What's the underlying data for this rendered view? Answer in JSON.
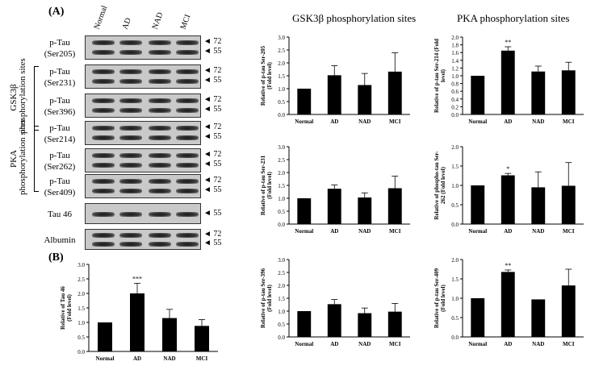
{
  "figure": {
    "panel_a": "(A)",
    "panel_b": "(B)",
    "lanes": [
      "Normal",
      "AD",
      "NAD",
      "MCI"
    ],
    "gsk_header": "GSK3β phosphorylation sites",
    "pka_header": "PKA phosphorylation sites",
    "group_gsk": "GSK3β\nphosphorylation sites",
    "group_pka": "PKA\nphosphorylation sites",
    "blots": [
      {
        "l1": "p-Tau",
        "l2": "(Ser205)",
        "mw": [
          "◄ 72",
          "◄ 55"
        ]
      },
      {
        "l1": "p-Tau",
        "l2": "(Ser231)",
        "mw": [
          "◄ 72",
          "◄ 55"
        ]
      },
      {
        "l1": "p-Tau",
        "l2": "(Ser396)",
        "mw": [
          "◄ 72",
          "◄ 55"
        ]
      },
      {
        "l1": "p-Tau",
        "l2": "(Ser214)",
        "mw": [
          "◄ 72",
          "◄ 55"
        ]
      },
      {
        "l1": "p-Tau",
        "l2": "(Ser262)",
        "mw": [
          "◄ 72",
          "◄ 55"
        ]
      },
      {
        "l1": "p-Tau",
        "l2": "(Ser409)",
        "mw": [
          "◄ 72",
          "◄ 55"
        ]
      },
      {
        "l1": "Tau 46",
        "l2": "",
        "mw": [
          "◄ 55"
        ]
      },
      {
        "l1": "Albumin",
        "l2": "",
        "mw": [
          "◄ 72",
          "◄ 55"
        ]
      }
    ]
  },
  "chart_data": [
    {
      "id": "tau46",
      "type": "bar",
      "categories": [
        "Normal",
        "AD",
        "NAD",
        "MCI"
      ],
      "values": [
        1.0,
        2.0,
        1.15,
        0.88
      ],
      "errors": [
        0,
        0.35,
        0.3,
        0.22
      ],
      "annotations": [
        "",
        "***",
        "",
        ""
      ],
      "ylabel": "Relative of Tau 46\n(Fold level)",
      "ylim": [
        0,
        3.0
      ],
      "yticks": [
        "0.0",
        "0.5",
        "1.0",
        "1.5",
        "2.0",
        "2.5",
        "3.0"
      ]
    },
    {
      "id": "ser205",
      "type": "bar",
      "categories": [
        "Normal",
        "AD",
        "NAD",
        "MCI"
      ],
      "values": [
        1.0,
        1.52,
        1.14,
        1.66
      ],
      "errors": [
        0,
        0.37,
        0.45,
        0.73
      ],
      "annotations": [
        "",
        "",
        "",
        ""
      ],
      "ylabel": "Relative of p-tau Ser-205\n(Fold level)",
      "ylim": [
        0,
        3.0
      ],
      "yticks": [
        "0.0",
        "0.5",
        "1.0",
        "1.5",
        "2.0",
        "2.5",
        "3.0"
      ]
    },
    {
      "id": "ser231",
      "type": "bar",
      "categories": [
        "Normal",
        "AD",
        "NAD",
        "MCI"
      ],
      "values": [
        1.0,
        1.37,
        1.03,
        1.39
      ],
      "errors": [
        0,
        0.15,
        0.18,
        0.47
      ],
      "annotations": [
        "",
        "",
        "",
        ""
      ],
      "ylabel": "Relative of p-tau Ser-231\n(Fold level)",
      "ylim": [
        0,
        3.0
      ],
      "yticks": [
        "0.0",
        "0.5",
        "1.0",
        "1.5",
        "2.0",
        "2.5",
        "3.0"
      ]
    },
    {
      "id": "ser396",
      "type": "bar",
      "categories": [
        "Normal",
        "AD",
        "NAD",
        "MCI"
      ],
      "values": [
        1.0,
        1.27,
        0.92,
        0.98
      ],
      "errors": [
        0,
        0.18,
        0.2,
        0.32
      ],
      "annotations": [
        "",
        "",
        "",
        ""
      ],
      "ylabel": "Relative of p-tau Ser-396\n(Fold level)",
      "ylim": [
        0,
        3.0
      ],
      "yticks": [
        "0.0",
        "0.5",
        "1.0",
        "1.5",
        "2.0",
        "2.5",
        "3.0"
      ]
    },
    {
      "id": "ser214",
      "type": "bar",
      "categories": [
        "Normal",
        "AD",
        "NAD",
        "MCI"
      ],
      "values": [
        1.0,
        1.65,
        1.11,
        1.14
      ],
      "errors": [
        0,
        0.1,
        0.14,
        0.21
      ],
      "annotations": [
        "",
        "**",
        "",
        ""
      ],
      "ylabel": "Relative of p-tau Ser-214 (Fold\nlevel)",
      "ylim": [
        0,
        2.0
      ],
      "yticks": [
        "0.0",
        "0.2",
        "0.4",
        "0.6",
        "0.8",
        "1.0",
        "1.2",
        "1.4",
        "1.6",
        "1.8",
        "2.0"
      ]
    },
    {
      "id": "ser262",
      "type": "bar",
      "categories": [
        "Normal",
        "AD",
        "NAD",
        "MCI"
      ],
      "values": [
        1.0,
        1.26,
        0.95,
        0.99
      ],
      "errors": [
        0,
        0.05,
        0.4,
        0.6
      ],
      "annotations": [
        "",
        "*",
        "",
        ""
      ],
      "ylabel": "Relative of  phospho-tau Ser-\n262 (Fold level)",
      "ylim": [
        0,
        2.0
      ],
      "yticks": [
        "0.0",
        "0.5",
        "1.0",
        "1.5",
        "2.0"
      ]
    },
    {
      "id": "ser409",
      "type": "bar",
      "categories": [
        "Normal",
        "AD",
        "NAD",
        "MCI"
      ],
      "values": [
        1.0,
        1.68,
        0.97,
        1.33
      ],
      "errors": [
        0,
        0.05,
        0,
        0.42
      ],
      "annotations": [
        "",
        "**",
        "",
        ""
      ],
      "ylabel": "Relative of p-tau Ser-409\n(Fold level)",
      "ylim": [
        0,
        2.0
      ],
      "yticks": [
        "0.0",
        "0.5",
        "1.0",
        "1.5",
        "2.0"
      ]
    }
  ]
}
